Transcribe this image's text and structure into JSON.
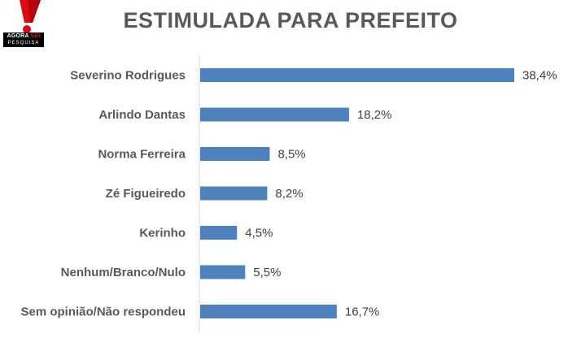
{
  "logo": {
    "line1_a": "AGORA",
    "line1_b": "SEI",
    "line2": "PESQUISA"
  },
  "chart_data": {
    "type": "bar",
    "orientation": "horizontal",
    "title": "ESTIMULADA PARA PREFEITO",
    "categories": [
      "Severino Rodrigues",
      "Arlindo Dantas",
      "Norma Ferreira",
      "Zé Figueiredo",
      "Kerinho",
      "Nenhum/Branco/Nulo",
      "Sem opinião/Não respondeu"
    ],
    "values": [
      38.4,
      18.2,
      8.5,
      8.2,
      4.5,
      5.5,
      16.7
    ],
    "value_labels": [
      "38,4%",
      "18,2%",
      "8,5%",
      "8,2%",
      "4,5%",
      "5,5%",
      "16,7%"
    ],
    "xlim": [
      0,
      40
    ],
    "grid": false,
    "bar_color": "#4f81bd"
  }
}
